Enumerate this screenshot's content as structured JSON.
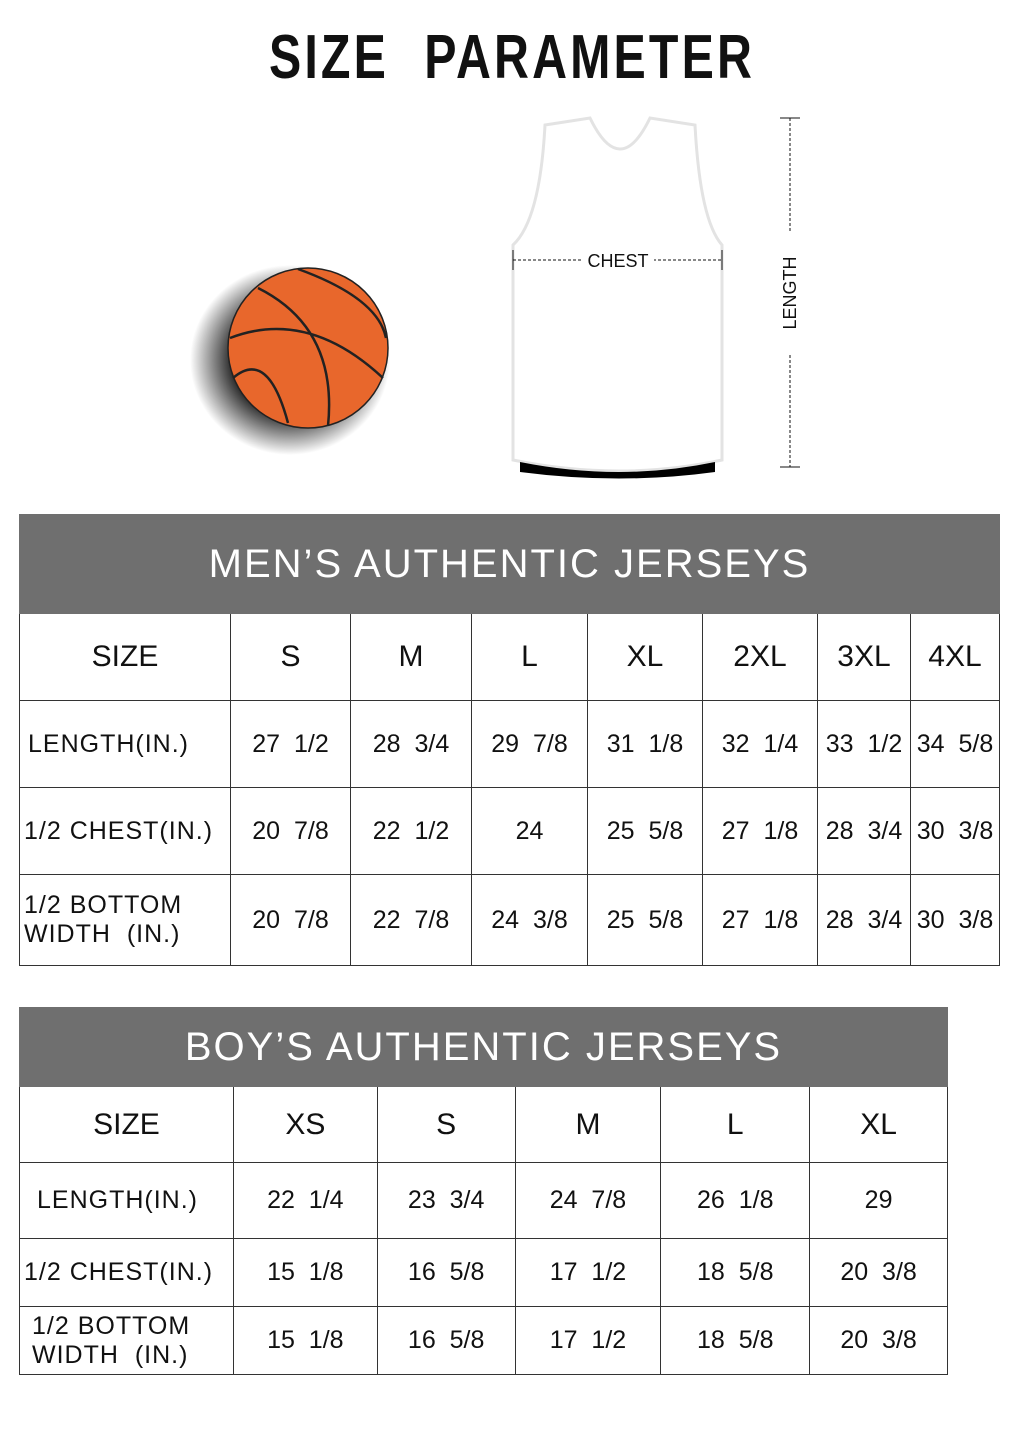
{
  "title": "SIZE PARAMETER",
  "diagram": {
    "chest_label": "CHEST",
    "length_label": "LENGTH",
    "ball_color": "#e8672c",
    "header_color": "#6f6f6f"
  },
  "men": {
    "title": "MEN’S AUTHENTIC JERSEYS",
    "columns": [
      "SIZE",
      "S",
      "M",
      "L",
      "XL",
      "2XL",
      "3XL",
      "4XL"
    ],
    "rows": [
      {
        "label": "LENGTH(IN.)",
        "values": [
          "27  1/2",
          "28  3/4",
          "29  7/8",
          "31  1/8",
          "32  1/4",
          "33  1/2",
          "34  5/8"
        ]
      },
      {
        "label": "1/2 CHEST(IN.)",
        "values": [
          "20  7/8",
          "22  1/2",
          "24",
          "25  5/8",
          "27  1/8",
          "28  3/4",
          "30  3/8"
        ]
      },
      {
        "label": "1/2 BOTTOM WIDTH  (IN.)",
        "values": [
          "20  7/8",
          "22  7/8",
          "24  3/8",
          "25  5/8",
          "27  1/8",
          "28  3/4",
          "30  3/8"
        ]
      }
    ]
  },
  "boy": {
    "title": "BOY’S AUTHENTIC JERSEYS",
    "columns": [
      "SIZE",
      "XS",
      "S",
      "M",
      "L",
      "XL"
    ],
    "rows": [
      {
        "label": "LENGTH(IN.)",
        "values": [
          "22  1/4",
          "23  3/4",
          "24  7/8",
          "26  1/8",
          "29"
        ]
      },
      {
        "label": "1/2 CHEST(IN.)",
        "values": [
          "15  1/8",
          "16  5/8",
          "17  1/2",
          "18  5/8",
          "20  3/8"
        ]
      },
      {
        "label": "1/2 BOTTOM WIDTH  (IN.)",
        "values": [
          "15  1/8",
          "16  5/8",
          "17  1/2",
          "18  5/8",
          "20  3/8"
        ]
      }
    ]
  }
}
